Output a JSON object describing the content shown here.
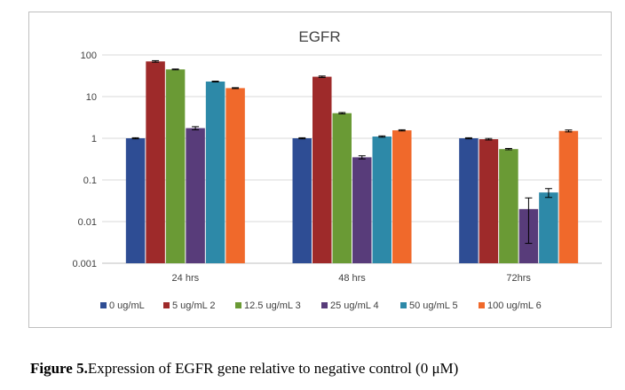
{
  "chart_data": {
    "type": "bar",
    "title": "EGFR",
    "xlabel": "",
    "ylabel": "",
    "yscale": "log",
    "ylim": [
      0.001,
      100
    ],
    "yticks": [
      "100",
      "10",
      "1",
      "0.1",
      "0.01",
      "0.001"
    ],
    "ytick_values": [
      100,
      10,
      1,
      0.1,
      0.01,
      0.001
    ],
    "grid": true,
    "legend_position": "bottom",
    "categories": [
      "24 hrs",
      "48 hrs",
      "72hrs"
    ],
    "series": [
      {
        "name": "0 ug/mL",
        "color": "#2e4d94",
        "values": [
          1,
          1,
          1
        ],
        "errors": [
          0.03,
          0.03,
          0.03
        ]
      },
      {
        "name": "5 ug/mL 2",
        "color": "#9e2a2a",
        "values": [
          70,
          30,
          0.95
        ],
        "errors": [
          3,
          1.2,
          0.04
        ]
      },
      {
        "name": "12.5 ug/mL 3",
        "color": "#6a9a35",
        "values": [
          45,
          4,
          0.55
        ],
        "errors": [
          1,
          0.15,
          0.02
        ]
      },
      {
        "name": "25 ug/mL 4",
        "color": "#583c7a",
        "values": [
          1.75,
          0.35,
          0.02
        ],
        "errors": [
          0.15,
          0.03,
          0.017
        ]
      },
      {
        "name": "50 ug/mL 5",
        "color": "#2d89a8",
        "values": [
          23,
          1.1,
          0.05
        ],
        "errors": [
          0.5,
          0.04,
          0.012
        ]
      },
      {
        "name": "100 ug/mL 6",
        "color": "#f0692b",
        "values": [
          16,
          1.55,
          1.5
        ],
        "errors": [
          0.4,
          0.05,
          0.08
        ]
      }
    ]
  },
  "caption": {
    "lead": "Figure 5.",
    "text": "Expression of EGFR gene relative to negative control (0 μM)"
  },
  "colors": {
    "gridline": "#d9d9d9",
    "axis": "#bfbfbf",
    "text": "#404040"
  }
}
